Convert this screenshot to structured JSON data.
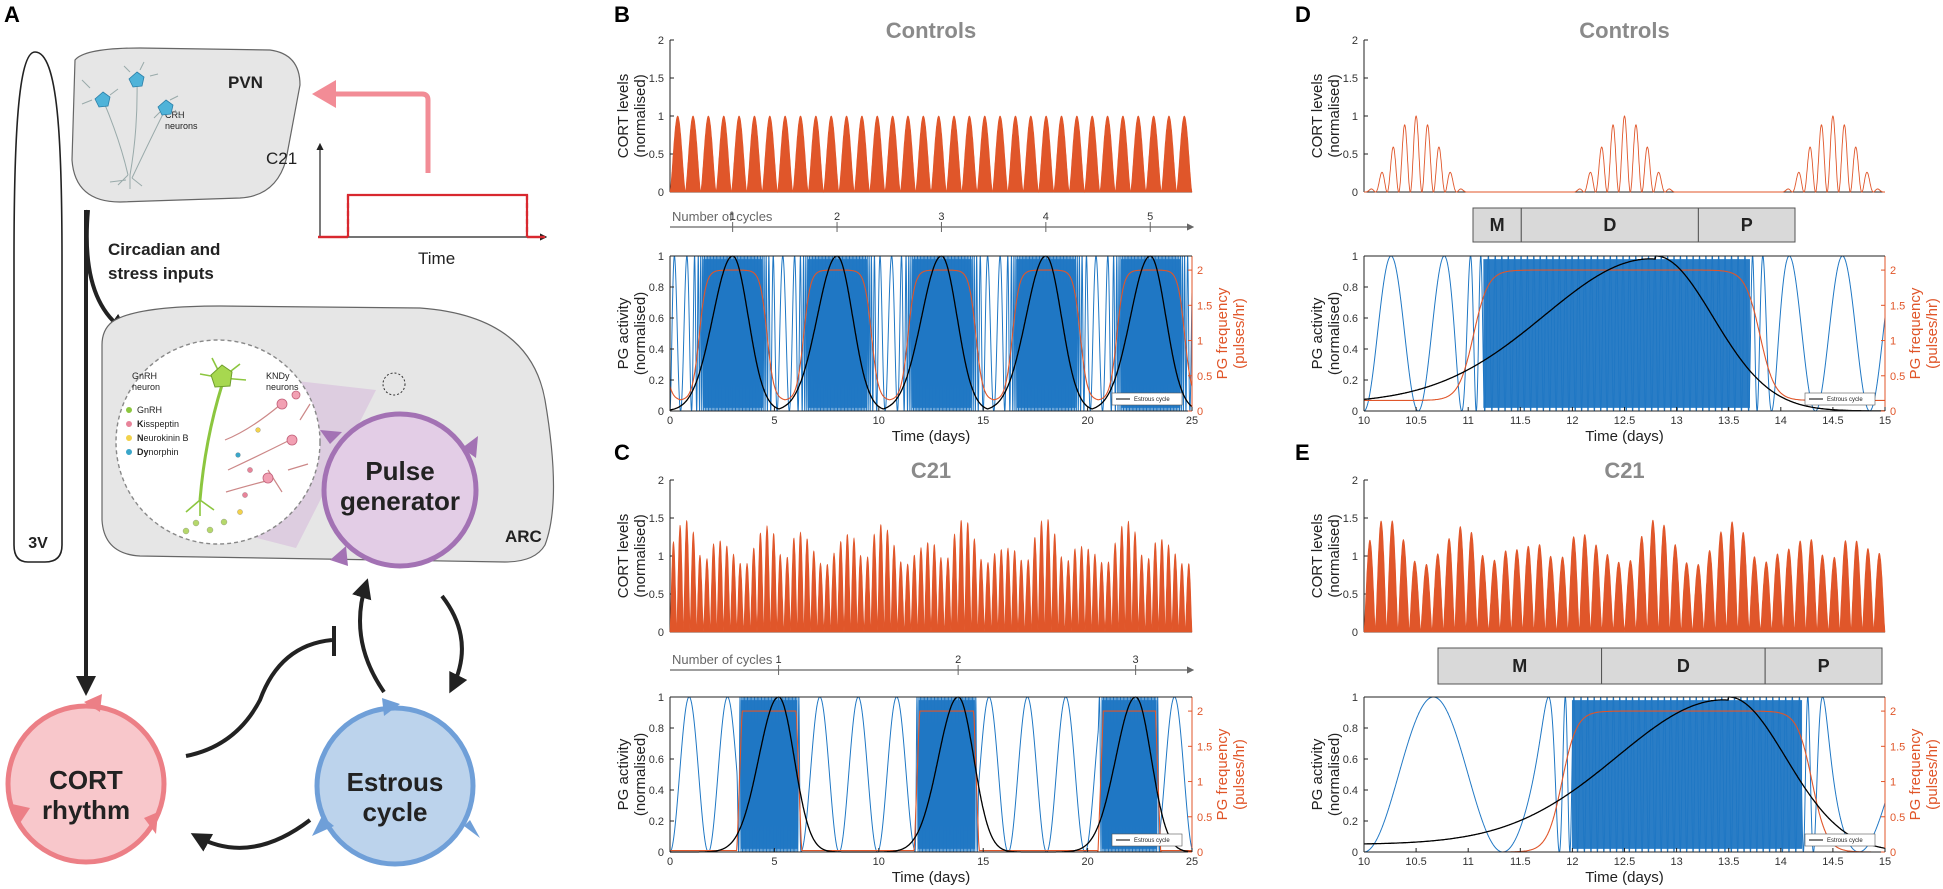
{
  "labels": {
    "A": "A",
    "B": "B",
    "C": "C",
    "D": "D",
    "E": "E"
  },
  "colors": {
    "cort": "#e0562a",
    "pg": "#1f77c4",
    "estrous": "#000000",
    "freq": "#e0562a",
    "phase_box": "#d9d9d9"
  },
  "diagram": {
    "pvn": "PVN",
    "crh_line1": "CRH",
    "crh_line2": "neurons",
    "c21": "C21",
    "time": "Time",
    "inputs_line1": "Circadian and",
    "inputs_line2": "stress inputs",
    "third_ventricle": "3V",
    "arc": "ARC",
    "gnrh_neuron_line1": "GnRH",
    "gnrh_neuron_line2": "neuron",
    "kndy_line1": "KNDy",
    "kndy_line2": "neurons",
    "legend": [
      {
        "bold": "",
        "rest": "GnRH",
        "color": "#8cc63f"
      },
      {
        "bold": "K",
        "rest": "isspeptin",
        "color": "#e8849a"
      },
      {
        "bold": "N",
        "rest": "eurokinin B",
        "color": "#f2d24b"
      },
      {
        "bold": "Dy",
        "rest": "norphin",
        "color": "#3aa6c9"
      }
    ],
    "pulse_line1": "Pulse",
    "pulse_line2": "generator",
    "cort_line1": "CORT",
    "cort_line2": "rhythm",
    "estrous_line1": "Estrous",
    "estrous_line2": "cycle"
  },
  "chart_data": [
    {
      "id": "B_top",
      "type": "line",
      "title": "Controls",
      "ylabel": [
        "CORT levels",
        "(normalised)"
      ],
      "xlim": [
        0,
        25
      ],
      "ylim": [
        0,
        2
      ],
      "yticks": [
        "0",
        "0.5",
        "1",
        "1.5",
        "2"
      ],
      "series": [
        {
          "name": "CORT",
          "peak": 1.0,
          "oscillations": 34,
          "shape": "uniform"
        }
      ]
    },
    {
      "id": "B_cycles",
      "label": "Number of cycles",
      "ticks": [
        "1",
        "2",
        "3",
        "4",
        "5"
      ],
      "positions_days": [
        3,
        8,
        13,
        18,
        23
      ]
    },
    {
      "id": "B_bottom",
      "type": "line",
      "ylabel": [
        "PG activity",
        "(normalised)"
      ],
      "y2label": [
        "PG frequency",
        "(pulses/hr)"
      ],
      "xlabel": "Time (days)",
      "xlim": [
        0,
        25
      ],
      "ylim": [
        0,
        1
      ],
      "y2lim": [
        0,
        2.2
      ],
      "xticks": [
        "0",
        "5",
        "10",
        "15",
        "20",
        "25"
      ],
      "yticks": [
        "0",
        "0.2",
        "0.4",
        "0.6",
        "0.8",
        "1"
      ],
      "y2ticks": [
        "0",
        "0.5",
        "1",
        "1.5",
        "2"
      ],
      "estrous_peaks_days": [
        3,
        8,
        13,
        18,
        23
      ],
      "freq_high": 2.0,
      "freq_low": 0.15,
      "legend": "Estrous cycle"
    },
    {
      "id": "C_top",
      "type": "line",
      "title": "C21",
      "ylabel": [
        "CORT levels",
        "(normalised)"
      ],
      "xlim": [
        0,
        25
      ],
      "ylim": [
        0,
        2
      ],
      "yticks": [
        "0",
        "0.5",
        "1",
        "1.5",
        "2"
      ],
      "series": [
        {
          "name": "CORT",
          "peak": 1.5,
          "oscillations": 78,
          "shape": "modulated"
        }
      ]
    },
    {
      "id": "C_cycles",
      "label": "Number of cycles",
      "ticks": [
        "1",
        "2",
        "3"
      ],
      "positions_days": [
        5.2,
        13.8,
        22.3
      ]
    },
    {
      "id": "C_bottom",
      "type": "line",
      "ylabel": [
        "PG activity",
        "(normalised)"
      ],
      "y2label": [
        "PG frequency",
        "(pulses/hr)"
      ],
      "xlabel": "Time (days)",
      "xlim": [
        0,
        25
      ],
      "ylim": [
        0,
        1
      ],
      "y2lim": [
        0,
        2.2
      ],
      "xticks": [
        "0",
        "5",
        "10",
        "15",
        "20",
        "25"
      ],
      "yticks": [
        "0",
        "0.2",
        "0.4",
        "0.6",
        "0.8",
        "1"
      ],
      "y2ticks": [
        "0",
        "0.5",
        "1",
        "1.5",
        "2"
      ],
      "estrous_peaks_days": [
        5.2,
        13.8,
        22.3
      ],
      "active_bands_days": [
        [
          3.2,
          6.3
        ],
        [
          11.7,
          14.8
        ],
        [
          20.5,
          23.5
        ]
      ],
      "freq_high": 2.0,
      "legend": "Estrous cycle"
    },
    {
      "id": "D_top",
      "type": "line",
      "title": "Controls",
      "ylabel": [
        "CORT levels",
        "(normalised)"
      ],
      "xlim": [
        10,
        15
      ],
      "ylim": [
        0,
        2
      ],
      "yticks": [
        "0",
        "0.5",
        "1",
        "1.5",
        "2"
      ],
      "series": [
        {
          "name": "CORT",
          "peak": 1.0,
          "envelopes": 5,
          "oscillations_per_envelope": 9
        }
      ]
    },
    {
      "id": "D_phases",
      "phases": [
        {
          "label": "M",
          "start": 10.25,
          "end": 10.55
        },
        {
          "label": "D",
          "start": 10.55,
          "end": 11.65
        },
        {
          "label": "P",
          "start": 11.65,
          "end": 12.25
        }
      ]
    },
    {
      "id": "D_bottom",
      "type": "line",
      "ylabel": [
        "PG activity",
        "(normalised)"
      ],
      "y2label": [
        "PG frequency",
        "(pulses/hr)"
      ],
      "xlabel": "Time (days)",
      "xlim": [
        10,
        15
      ],
      "ylim": [
        0,
        1
      ],
      "y2lim": [
        0,
        2.2
      ],
      "xticks": [
        "10",
        "10.5",
        "11",
        "11.5",
        "12",
        "12.5",
        "13",
        "13.5",
        "14",
        "14.5",
        "15"
      ],
      "yticks": [
        "0",
        "0.2",
        "0.4",
        "0.6",
        "0.8",
        "1"
      ],
      "y2ticks": [
        "0",
        "0.5",
        "1",
        "1.5",
        "2"
      ],
      "estrous_peak_day": 12.8,
      "freq_rise_day": 11.05,
      "freq_fall_day": 13.8,
      "freq_high": 2.0,
      "freq_low": 0.15,
      "legend": "Estrous cycle"
    },
    {
      "id": "E_top",
      "type": "line",
      "title": "C21",
      "ylabel": [
        "CORT levels",
        "(normalised)"
      ],
      "xlim": [
        10,
        15
      ],
      "ylim": [
        0,
        2
      ],
      "yticks": [
        "0",
        "0.5",
        "1",
        "1.5",
        "2"
      ],
      "series": [
        {
          "name": "CORT",
          "peak": 1.5,
          "oscillations": 46,
          "shape": "modulated"
        }
      ]
    },
    {
      "id": "E_phases",
      "phases": [
        {
          "label": "M",
          "start": 10.3,
          "end": 11.0
        },
        {
          "label": "D",
          "start": 11.0,
          "end": 11.7
        },
        {
          "label": "P",
          "start": 11.7,
          "end": 12.2
        }
      ]
    },
    {
      "id": "E_bottom",
      "type": "line",
      "ylabel": [
        "PG activity",
        "(normalised)"
      ],
      "y2label": [
        "PG frequency",
        "(pulses/hr)"
      ],
      "xlabel": "Time (days)",
      "xlim": [
        10,
        15
      ],
      "ylim": [
        0,
        1
      ],
      "y2lim": [
        0,
        2.2
      ],
      "xticks": [
        "10",
        "10.5",
        "11",
        "11.5",
        "12",
        "12.5",
        "13",
        "13.5",
        "14",
        "14.5",
        "15"
      ],
      "yticks": [
        "0",
        "0.2",
        "0.4",
        "0.6",
        "0.8",
        "1"
      ],
      "y2ticks": [
        "0",
        "0.5",
        "1",
        "1.5",
        "2"
      ],
      "estrous_peak_day": 13.5,
      "freq_rise_day": 11.9,
      "freq_fall_day": 14.3,
      "freq_high": 2.0,
      "freq_low": 0.0,
      "legend": "Estrous cycle"
    }
  ]
}
